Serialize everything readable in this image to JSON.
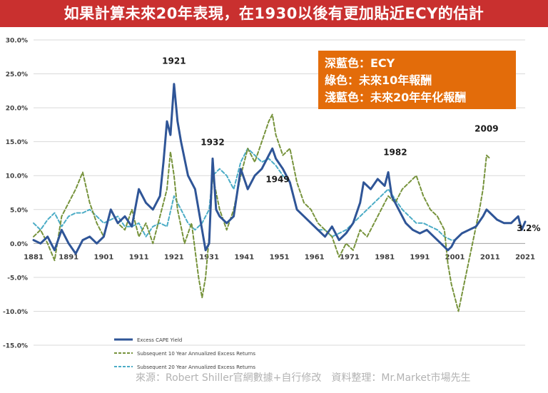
{
  "header": {
    "title": "如果計算未來20年表現，在1930以後有更加貼近ECY的估計"
  },
  "info_box": {
    "line1": "深藍色：ECY",
    "line2": "綠色：未來10年報酬",
    "line3": "淺藍色：未來20年年化報酬"
  },
  "footer": {
    "source": "來源：Robert Shiller官網數據+自行修改　資料整理：Mr.Market市場先生"
  },
  "colors": {
    "ecy": "#2f5597",
    "ret10": "#77933c",
    "ret20": "#4bacc6",
    "title_bg": "#c9302f",
    "box_bg": "#e36c0a"
  },
  "chart_data": {
    "type": "line",
    "xlim": [
      1881,
      2021
    ],
    "ylim": [
      -15,
      30
    ],
    "x_ticks": [
      "1881",
      "1891",
      "1901",
      "1911",
      "1921",
      "1931",
      "1941",
      "1951",
      "1961",
      "1971",
      "1981",
      "1991",
      "2001",
      "2011",
      "2021"
    ],
    "y_ticks": [
      "30.0%",
      "25.0%",
      "20.0%",
      "15.0%",
      "10.0%",
      "5.0%",
      "0.0%",
      "-5.0%",
      "-10.0%",
      "-15.0%"
    ],
    "grid": true,
    "legend_position": "bottom-left",
    "annotations": [
      {
        "text": "1921",
        "x": 1921,
        "y": 26.5
      },
      {
        "text": "1932",
        "x": 1932,
        "y": 14.5
      },
      {
        "text": "1949",
        "x": 1950.5,
        "y": 9.0
      },
      {
        "text": "1982",
        "x": 1984,
        "y": 13.0
      },
      {
        "text": "2009",
        "x": 2010,
        "y": 16.5
      },
      {
        "text": "3.2%",
        "x": 2022,
        "y": 1.8
      }
    ],
    "series": [
      {
        "name": "Excess CAPE Yield",
        "x": [
          1881,
          1883,
          1885,
          1887,
          1889,
          1891,
          1893,
          1895,
          1897,
          1899,
          1901,
          1903,
          1905,
          1907,
          1909,
          1911,
          1913,
          1915,
          1917,
          1918,
          1919,
          1920,
          1921,
          1922,
          1923,
          1925,
          1927,
          1929,
          1930,
          1931,
          1932,
          1933,
          1934,
          1936,
          1938,
          1940,
          1942,
          1944,
          1946,
          1948,
          1949,
          1950,
          1952,
          1954,
          1956,
          1958,
          1960,
          1962,
          1964,
          1966,
          1968,
          1970,
          1972,
          1974,
          1975,
          1977,
          1979,
          1981,
          1982,
          1983,
          1985,
          1987,
          1989,
          1991,
          1993,
          1995,
          1997,
          1999,
          2000,
          2001,
          2003,
          2005,
          2007,
          2009,
          2010,
          2011,
          2013,
          2015,
          2017,
          2019,
          2020,
          2021
        ],
        "values": [
          0.5,
          0.0,
          1.0,
          -1.0,
          2.0,
          0.0,
          -1.5,
          0.5,
          1.0,
          0.0,
          1.0,
          5.0,
          3.0,
          4.0,
          2.5,
          8.0,
          6.0,
          5.0,
          7.0,
          12.0,
          18.0,
          16.0,
          23.5,
          18.0,
          15.0,
          10.0,
          8.0,
          2.0,
          -1.0,
          0.0,
          12.5,
          5.0,
          4.0,
          3.0,
          4.0,
          11.0,
          8.0,
          10.0,
          11.0,
          13.0,
          14.0,
          12.5,
          11.0,
          9.0,
          5.0,
          4.0,
          3.0,
          2.0,
          1.0,
          2.5,
          0.5,
          1.5,
          3.0,
          6.0,
          9.0,
          8.0,
          9.5,
          8.5,
          10.5,
          7.0,
          5.0,
          3.0,
          2.0,
          1.5,
          2.0,
          1.0,
          0.0,
          -1.0,
          -0.5,
          0.5,
          1.5,
          2.0,
          2.5,
          4.0,
          5.0,
          4.5,
          3.5,
          3.0,
          3.0,
          4.0,
          2.0,
          3.2
        ]
      },
      {
        "name": "Subsequent 10 Year Annualized Excess Returns",
        "x": [
          1881,
          1883,
          1885,
          1887,
          1889,
          1891,
          1893,
          1895,
          1897,
          1899,
          1901,
          1903,
          1905,
          1907,
          1909,
          1911,
          1913,
          1915,
          1917,
          1919,
          1920,
          1921,
          1922,
          1924,
          1926,
          1928,
          1929,
          1930,
          1931,
          1932,
          1934,
          1936,
          1938,
          1940,
          1942,
          1944,
          1946,
          1948,
          1949,
          1950,
          1952,
          1954,
          1956,
          1958,
          1960,
          1962,
          1964,
          1966,
          1968,
          1970,
          1972,
          1974,
          1976,
          1978,
          1980,
          1982,
          1984,
          1986,
          1988,
          1990,
          1992,
          1994,
          1996,
          1998,
          1999,
          2000,
          2002,
          2004,
          2006,
          2008,
          2009,
          2010,
          2011
        ],
        "values": [
          1.0,
          2.0,
          0.0,
          -2.5,
          4.0,
          6.0,
          8.0,
          10.5,
          6.0,
          3.0,
          1.0,
          5.0,
          3.0,
          2.0,
          5.0,
          1.0,
          3.0,
          0.0,
          4.0,
          8.0,
          13.5,
          10.0,
          5.0,
          0.0,
          3.0,
          -5.0,
          -8.0,
          -5.0,
          1.0,
          10.0,
          5.0,
          2.0,
          5.0,
          10.0,
          14.0,
          12.0,
          15.0,
          18.0,
          19.0,
          16.0,
          13.0,
          14.0,
          9.0,
          6.0,
          5.0,
          3.0,
          2.0,
          1.0,
          -2.0,
          0.0,
          -1.0,
          2.0,
          1.0,
          3.0,
          5.0,
          7.0,
          6.0,
          8.0,
          9.0,
          10.0,
          7.0,
          5.0,
          4.0,
          2.0,
          -3.0,
          -6.0,
          -10.0,
          -5.0,
          0.0,
          5.0,
          8.0,
          13.0,
          12.5
        ]
      },
      {
        "name": "Subsequent 20 Year Annualized Excess Returns",
        "x": [
          1881,
          1883,
          1885,
          1887,
          1889,
          1891,
          1893,
          1895,
          1897,
          1899,
          1901,
          1903,
          1905,
          1907,
          1909,
          1911,
          1913,
          1915,
          1917,
          1919,
          1921,
          1923,
          1925,
          1927,
          1929,
          1931,
          1932,
          1934,
          1936,
          1938,
          1940,
          1942,
          1944,
          1946,
          1948,
          1950,
          1952,
          1954,
          1956,
          1958,
          1960,
          1962,
          1964,
          1966,
          1968,
          1970,
          1972,
          1974,
          1976,
          1978,
          1980,
          1982,
          1984,
          1986,
          1988,
          1990,
          1992,
          1994,
          1996,
          1998,
          2000,
          2001
        ],
        "values": [
          3.0,
          2.0,
          3.5,
          4.5,
          2.5,
          4.0,
          4.5,
          4.5,
          5.0,
          4.0,
          3.0,
          3.5,
          4.0,
          2.5,
          2.5,
          3.0,
          1.0,
          2.5,
          3.0,
          2.5,
          7.0,
          5.0,
          3.0,
          2.0,
          3.0,
          5.0,
          10.0,
          11.0,
          10.0,
          8.0,
          12.0,
          14.0,
          13.0,
          12.0,
          12.5,
          11.5,
          10.0,
          9.0,
          5.0,
          4.0,
          3.0,
          2.0,
          2.0,
          1.0,
          1.5,
          2.0,
          3.0,
          4.0,
          5.0,
          6.0,
          7.0,
          8.0,
          6.5,
          5.0,
          4.0,
          3.0,
          3.0,
          2.5,
          2.0,
          1.0,
          0.5,
          0.5
        ]
      }
    ]
  }
}
